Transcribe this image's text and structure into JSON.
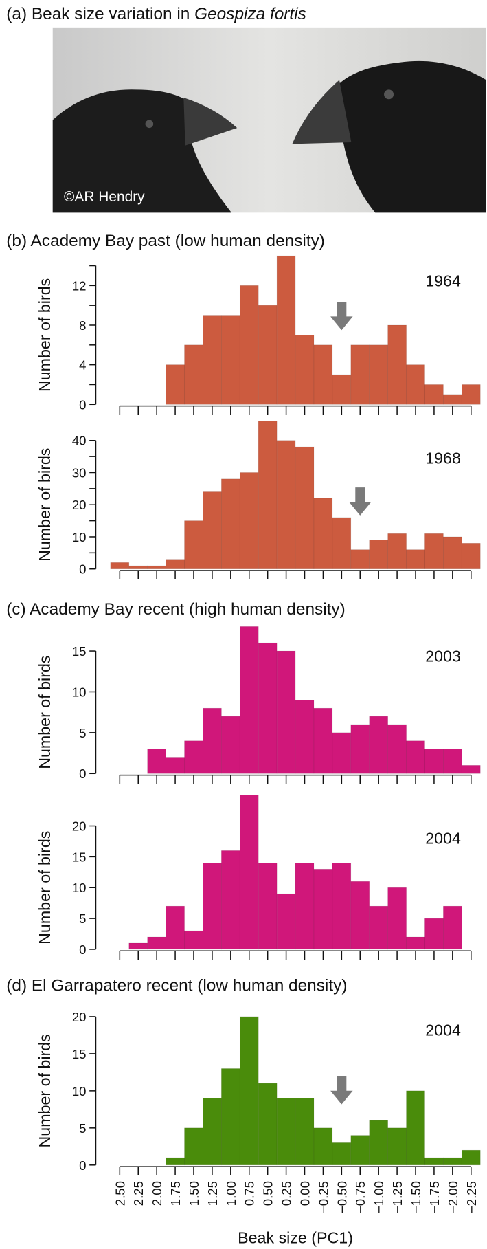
{
  "panel_a": {
    "title": "(a) Beak size variation in ",
    "species": "Geospiza fortis",
    "credit": "©AR Hendry"
  },
  "chart_data": [
    {
      "type": "histogram",
      "heading": "(b) Academy Bay past (low human density)",
      "title": "1964",
      "ylabel": "Number of birds",
      "color": "#cc5b3f",
      "bins": [
        2.625,
        2.375,
        2.125,
        1.875,
        1.625,
        1.375,
        1.125,
        0.875,
        0.625,
        0.375,
        0.125,
        -0.125,
        -0.375,
        -0.625,
        -0.875,
        -1.125,
        -1.375,
        -1.625,
        -1.875,
        -2.125,
        -2.375
      ],
      "values": [
        0,
        0,
        0,
        4,
        6,
        9,
        9,
        12,
        10,
        15,
        7,
        6,
        3,
        6,
        6,
        8,
        4,
        2,
        1,
        2
      ],
      "xlim": [
        2.625,
        -2.375
      ],
      "ylim": [
        0,
        15
      ],
      "yticks": [
        0,
        4,
        8,
        12
      ],
      "yminorticks": [
        2,
        6,
        10,
        14
      ],
      "arrow": -0.5
    },
    {
      "type": "histogram",
      "title": "1968",
      "ylabel": "Number of birds",
      "color": "#cc5b3f",
      "bins": [
        2.625,
        2.375,
        2.125,
        1.875,
        1.625,
        1.375,
        1.125,
        0.875,
        0.625,
        0.375,
        0.125,
        -0.125,
        -0.375,
        -0.625,
        -0.875,
        -1.125,
        -1.375,
        -1.625,
        -1.875,
        -2.125,
        -2.375
      ],
      "values": [
        2,
        1,
        1,
        3,
        15,
        24,
        28,
        30,
        46,
        40,
        38,
        22,
        16,
        6,
        9,
        11,
        6,
        11,
        10,
        8
      ],
      "xlim": [
        2.625,
        -2.375
      ],
      "ylim": [
        0,
        46
      ],
      "yticks": [
        0,
        10,
        20,
        30,
        40
      ],
      "yminorticks": [
        5,
        15,
        25,
        35
      ],
      "arrow": -0.75
    },
    {
      "type": "histogram",
      "heading": "(c) Academy Bay recent (high human density)",
      "title": "2003",
      "ylabel": "Number of birds",
      "color": "#d0177a",
      "bins": [
        2.625,
        2.375,
        2.125,
        1.875,
        1.625,
        1.375,
        1.125,
        0.875,
        0.625,
        0.375,
        0.125,
        -0.125,
        -0.375,
        -0.625,
        -0.875,
        -1.125,
        -1.375,
        -1.625,
        -1.875,
        -2.125,
        -2.375
      ],
      "values": [
        0,
        0,
        3,
        2,
        4,
        8,
        7,
        18,
        16,
        15,
        9,
        8,
        5,
        6,
        7,
        6,
        4,
        3,
        3,
        1
      ],
      "xlim": [
        2.625,
        -2.375
      ],
      "ylim": [
        0,
        18
      ],
      "yticks": [
        0,
        5,
        10,
        15
      ]
    },
    {
      "type": "histogram",
      "title": "2004",
      "ylabel": "Number of birds",
      "color": "#d0177a",
      "bins": [
        2.625,
        2.375,
        2.125,
        1.875,
        1.625,
        1.375,
        1.125,
        0.875,
        0.625,
        0.375,
        0.125,
        -0.125,
        -0.375,
        -0.625,
        -0.875,
        -1.125,
        -1.375,
        -1.625,
        -1.875,
        -2.125,
        -2.375
      ],
      "values": [
        0,
        1,
        2,
        7,
        3,
        14,
        16,
        25,
        14,
        9,
        14,
        13,
        14,
        11,
        7,
        10,
        2,
        5,
        7,
        0
      ],
      "xlim": [
        2.625,
        -2.375
      ],
      "ylim": [
        0,
        25
      ],
      "yticks": [
        0,
        5,
        10,
        15,
        20
      ]
    },
    {
      "type": "histogram",
      "heading": "(d) El Garrapatero recent (low human density)",
      "title": "2004",
      "ylabel": "Number of birds",
      "xlabel": "Beak size (PC1)",
      "color": "#4a8c0b",
      "bins": [
        2.625,
        2.375,
        2.125,
        1.875,
        1.625,
        1.375,
        1.125,
        0.875,
        0.625,
        0.375,
        0.125,
        -0.125,
        -0.375,
        -0.625,
        -0.875,
        -1.125,
        -1.375,
        -1.625,
        -1.875,
        -2.125,
        -2.375
      ],
      "values": [
        0,
        0,
        0,
        1,
        5,
        9,
        13,
        20,
        11,
        9,
        9,
        5,
        3,
        4,
        6,
        5,
        10,
        1,
        1,
        2
      ],
      "xlim": [
        2.625,
        -2.375
      ],
      "ylim": [
        0,
        21
      ],
      "yticks": [
        0,
        5,
        10,
        15,
        20
      ],
      "arrow": -0.5,
      "xticks": [
        {
          "value": 2.5,
          "label": "2.50"
        },
        {
          "value": 2.25,
          "label": "2.25"
        },
        {
          "value": 2,
          "label": "2.00"
        },
        {
          "value": 1.75,
          "label": "1.75"
        },
        {
          "value": 1.5,
          "label": "1.50"
        },
        {
          "value": 1.25,
          "label": "1.25"
        },
        {
          "value": 1,
          "label": "1.00"
        },
        {
          "value": 0.75,
          "label": "0.75"
        },
        {
          "value": 0.5,
          "label": "0.50"
        },
        {
          "value": 0.25,
          "label": "0.25"
        },
        {
          "value": 0,
          "label": "0.00"
        },
        {
          "value": -0.25,
          "label": "−0.25"
        },
        {
          "value": -0.5,
          "label": "−0.50"
        },
        {
          "value": -0.75,
          "label": "−0.75"
        },
        {
          "value": -1,
          "label": "−1.00"
        },
        {
          "value": -1.25,
          "label": "−1.25"
        },
        {
          "value": -1.5,
          "label": "−1.50"
        },
        {
          "value": -1.75,
          "label": "−1.75"
        },
        {
          "value": -2,
          "label": "−2.00"
        },
        {
          "value": -2.25,
          "label": "−2.25"
        }
      ]
    }
  ]
}
